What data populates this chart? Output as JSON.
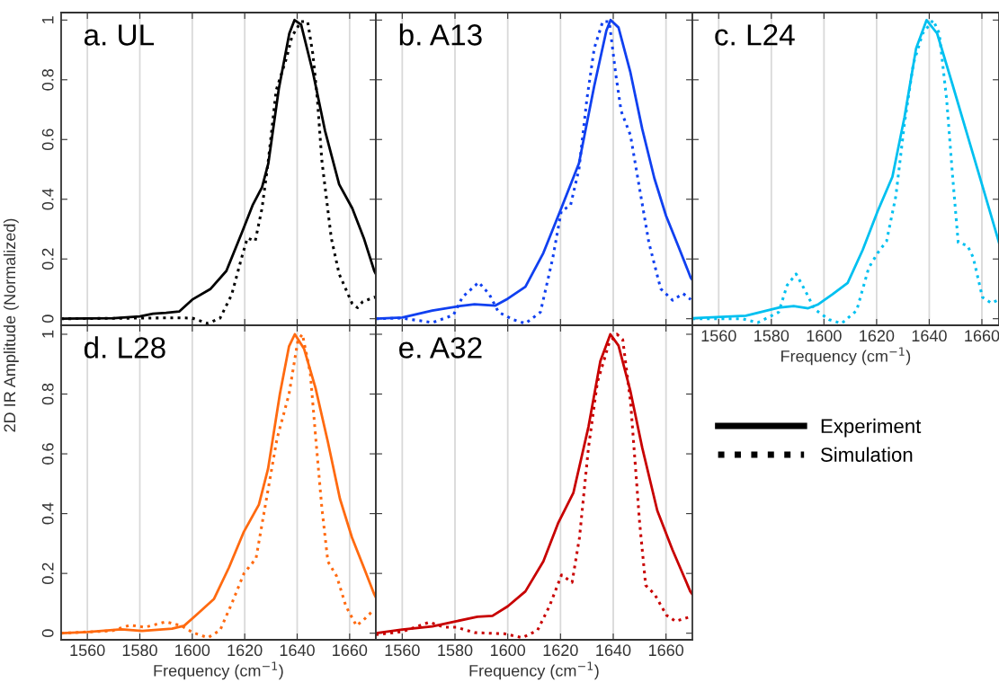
{
  "chart_data": [
    {
      "type": "line",
      "title": "a. UL",
      "ylabel": "2D IR Amplitude (Normalized)",
      "xlim": [
        1550,
        1670
      ],
      "ylim": [
        -0.022,
        1.025
      ],
      "xticks": [
        1560,
        1580,
        1600,
        1620,
        1640,
        1660
      ],
      "yticks": [
        {
          "value": 0,
          "label": "0"
        },
        {
          "value": 0.2,
          "label": "0.2"
        },
        {
          "value": 0.4,
          "label": "0.4"
        },
        {
          "value": 0.6,
          "label": "0.6"
        },
        {
          "value": 0.8,
          "label": "0.8"
        },
        {
          "value": 1,
          "label": "1"
        }
      ],
      "tick_labels": "y",
      "grid": "x",
      "legend": "bottom right",
      "series": [
        {
          "name": "Experiment",
          "color": "#000000",
          "line_style": "solid",
          "x": [
            1550,
            1570,
            1580,
            1585,
            1590,
            1595,
            1600,
            1607,
            1613,
            1619,
            1623,
            1626.6,
            1629,
            1633,
            1637,
            1639,
            1641.5,
            1646,
            1650.6,
            1656,
            1661,
            1665.4,
            1669.4,
            1670
          ],
          "values": [
            0,
            0.002,
            0.008,
            0.017,
            0.02,
            0.024,
            0.064,
            0.1,
            0.16,
            0.29,
            0.38,
            0.44,
            0.52,
            0.77,
            0.955,
            1,
            0.985,
            0.825,
            0.63,
            0.45,
            0.37,
            0.27,
            0.16,
            0.15
          ]
        },
        {
          "name": "Simulation",
          "color": "#000000",
          "line_style": "dotted",
          "x": [
            1550,
            1595,
            1600,
            1606,
            1610.6,
            1615,
            1619,
            1621,
            1624,
            1626.6,
            1629,
            1632,
            1636,
            1638,
            1641.5,
            1644,
            1646,
            1647.7,
            1649.4,
            1653,
            1656,
            1661,
            1663,
            1665,
            1669.4,
            1670
          ],
          "values": [
            0,
            0.003,
            0.002,
            -0.016,
            0.002,
            0.08,
            0.21,
            0.27,
            0.26,
            0.37,
            0.53,
            0.765,
            0.875,
            0.945,
            0.995,
            0.995,
            0.885,
            0.735,
            0.53,
            0.27,
            0.15,
            0.05,
            0.037,
            0.057,
            0.072,
            0.07
          ]
        }
      ]
    },
    {
      "type": "line",
      "title": "b. A13",
      "xlim": [
        1550,
        1670
      ],
      "ylim": [
        -0.022,
        1.025
      ],
      "xticks": [
        1560,
        1580,
        1600,
        1620,
        1640,
        1660
      ],
      "yticks": [
        0,
        0.2,
        0.4,
        0.6,
        0.8,
        1
      ],
      "tick_labels": false,
      "grid": "x",
      "series": [
        {
          "color": "#1040f0",
          "line_style": "solid",
          "x": [
            1550,
            1560,
            1571.4,
            1581.7,
            1587.4,
            1595.3,
            1600,
            1606.7,
            1613.5,
            1620.3,
            1627,
            1632.8,
            1637.4,
            1639,
            1642,
            1646.5,
            1651,
            1655.6,
            1660,
            1664.8,
            1669.4,
            1670
          ],
          "values": [
            0,
            0.004,
            0.027,
            0.042,
            0.048,
            0.044,
            0.067,
            0.107,
            0.22,
            0.37,
            0.52,
            0.78,
            0.965,
            1,
            0.975,
            0.825,
            0.635,
            0.47,
            0.345,
            0.24,
            0.137,
            0.13
          ]
        },
        {
          "color": "#1040f0",
          "line_style": "dotted",
          "x": [
            1550,
            1560,
            1571.4,
            1579.4,
            1582.8,
            1589,
            1593,
            1596.5,
            1602,
            1606.7,
            1612.4,
            1617,
            1620.3,
            1623.8,
            1627,
            1630,
            1632.8,
            1636,
            1638.5,
            1641,
            1643,
            1646.5,
            1650,
            1653.5,
            1658,
            1662.5,
            1666.5,
            1669.4
          ],
          "values": [
            0,
            0.002,
            -0.013,
            0.012,
            0.072,
            0.122,
            0.082,
            0.022,
            -0.003,
            -0.016,
            0.022,
            0.2,
            0.36,
            0.38,
            0.5,
            0.735,
            0.905,
            0.995,
            0.995,
            0.815,
            0.695,
            0.615,
            0.435,
            0.255,
            0.1,
            0.062,
            0.084,
            0.064
          ]
        }
      ]
    },
    {
      "type": "line",
      "title": "c. L24",
      "xlabel": "Frequency (cm$^{−1}$)",
      "xlim": [
        1550,
        1666.5
      ],
      "ylim": [
        -0.022,
        1.025
      ],
      "xticks": [
        1560,
        1580,
        1600,
        1620,
        1640,
        1660
      ],
      "yticks": [
        0,
        0.2,
        0.4,
        0.6,
        0.8,
        1
      ],
      "tick_labels": "x",
      "grid": "x",
      "series": [
        {
          "color": "#00c0f0",
          "line_style": "solid",
          "x": [
            1550,
            1570.3,
            1582.8,
            1588.5,
            1594,
            1597.6,
            1603.3,
            1609,
            1614.7,
            1620.4,
            1626,
            1630.6,
            1635,
            1639,
            1643,
            1648.8,
            1654.5,
            1660.2,
            1666.5
          ],
          "values": [
            0.002,
            0.01,
            0.037,
            0.042,
            0.035,
            0.047,
            0.082,
            0.12,
            0.23,
            0.36,
            0.475,
            0.675,
            0.905,
            1,
            0.955,
            0.785,
            0.615,
            0.445,
            0.255
          ]
        },
        {
          "color": "#00c0f0",
          "line_style": "dotted",
          "x": [
            1550,
            1569,
            1574.8,
            1582.8,
            1586,
            1589.4,
            1593,
            1596.4,
            1602,
            1606.7,
            1612.4,
            1617,
            1620.4,
            1623.8,
            1627.3,
            1630.6,
            1634,
            1637.5,
            1641.5,
            1643.8,
            1646.6,
            1648.8,
            1651,
            1654.5,
            1656.7,
            1660.2,
            1663.6,
            1666.5
          ],
          "values": [
            0,
            0,
            -0.013,
            0.022,
            0.112,
            0.15,
            0.092,
            0.032,
            -0.003,
            -0.016,
            0.027,
            0.17,
            0.22,
            0.26,
            0.41,
            0.655,
            0.855,
            0.955,
            1,
            0.955,
            0.735,
            0.485,
            0.255,
            0.245,
            0.205,
            0.072,
            0.052,
            0.064
          ]
        }
      ]
    },
    {
      "type": "line",
      "title": "d. L28",
      "xlabel": "Frequency (cm$^{−1}$)",
      "xlim": [
        1550,
        1670
      ],
      "ylim": [
        -0.022,
        1.03
      ],
      "xticks": [
        1560,
        1580,
        1600,
        1620,
        1640,
        1660
      ],
      "yticks": [
        {
          "value": 0,
          "label": "0"
        },
        {
          "value": 0.2,
          "label": "0.2"
        },
        {
          "value": 0.4,
          "label": "0.4"
        },
        {
          "value": 0.6,
          "label": "0.6"
        },
        {
          "value": 0.8,
          "label": "0.8"
        },
        {
          "value": 1,
          "label": "1"
        }
      ],
      "grid": "x",
      "series": [
        {
          "color": "#ff6a10",
          "line_style": "solid",
          "x": [
            1550,
            1560,
            1572.9,
            1580.9,
            1592.3,
            1596.9,
            1601.4,
            1608.3,
            1614,
            1619.7,
            1625.4,
            1628.9,
            1633.4,
            1636.9,
            1639.1,
            1642.6,
            1647,
            1651.7,
            1656.3,
            1660.9,
            1665.4,
            1669.4,
            1670
          ],
          "values": [
            0,
            0.004,
            0.013,
            0.008,
            0.015,
            0.025,
            0.06,
            0.115,
            0.22,
            0.34,
            0.43,
            0.55,
            0.8,
            0.96,
            1,
            0.952,
            0.82,
            0.64,
            0.45,
            0.32,
            0.22,
            0.13,
            0.12
          ]
        },
        {
          "color": "#ff6a10",
          "line_style": "dotted",
          "x": [
            1550,
            1569.4,
            1576.3,
            1582,
            1590,
            1595.7,
            1600.3,
            1606,
            1610.6,
            1615.1,
            1619.7,
            1624.3,
            1627.7,
            1632.3,
            1636.9,
            1640.3,
            1642,
            1645,
            1647,
            1649.4,
            1651.7,
            1655.1,
            1658.6,
            1662.6,
            1665.4,
            1669.4
          ],
          "values": [
            0,
            0.008,
            0.027,
            0.02,
            0.038,
            0.025,
            0.002,
            -0.015,
            0.01,
            0.1,
            0.2,
            0.25,
            0.42,
            0.65,
            0.8,
            0.98,
            1,
            0.87,
            0.66,
            0.42,
            0.24,
            0.19,
            0.09,
            0.025,
            0.045,
            0.08
          ]
        }
      ]
    },
    {
      "type": "line",
      "title": "e. A32",
      "xlabel": "Frequency (cm$^{−1}$)",
      "xlim": [
        1550,
        1670
      ],
      "ylim": [
        -0.022,
        1.03
      ],
      "xticks": [
        1560,
        1580,
        1600,
        1620,
        1640,
        1660
      ],
      "yticks": [
        0,
        0.2,
        0.4,
        0.6,
        0.8,
        1
      ],
      "tick_labels": "x",
      "grid": "x",
      "series": [
        {
          "color": "#c80000",
          "line_style": "solid",
          "x": [
            1550,
            1560,
            1571.4,
            1580.5,
            1588.5,
            1594.2,
            1600,
            1606.7,
            1613.5,
            1619.2,
            1624.9,
            1630.6,
            1635.1,
            1638.9,
            1642,
            1646.5,
            1651,
            1656.7,
            1662.4,
            1669.2,
            1670
          ],
          "values": [
            0,
            0.012,
            0.023,
            0.04,
            0.055,
            0.058,
            0.09,
            0.14,
            0.24,
            0.37,
            0.47,
            0.69,
            0.91,
            1,
            0.962,
            0.81,
            0.62,
            0.41,
            0.28,
            0.14,
            0.13
          ]
        },
        {
          "color": "#c80000",
          "line_style": "dotted",
          "x": [
            1550,
            1560,
            1570.3,
            1576,
            1580.5,
            1587.4,
            1598.7,
            1605.6,
            1611.3,
            1615.8,
            1620.4,
            1624.4,
            1627.2,
            1630.6,
            1634,
            1638.5,
            1641.4,
            1643.6,
            1646.6,
            1650,
            1652.3,
            1655.7,
            1660.2,
            1663.6,
            1669.2
          ],
          "values": [
            -0.005,
            0.005,
            0.037,
            0.02,
            0.02,
            0.002,
            -0.002,
            -0.015,
            0.01,
            0.09,
            0.195,
            0.17,
            0.32,
            0.62,
            0.84,
            0.972,
            1,
            0.982,
            0.77,
            0.37,
            0.16,
            0.13,
            0.06,
            0.04,
            0.055
          ]
        }
      ]
    }
  ]
}
